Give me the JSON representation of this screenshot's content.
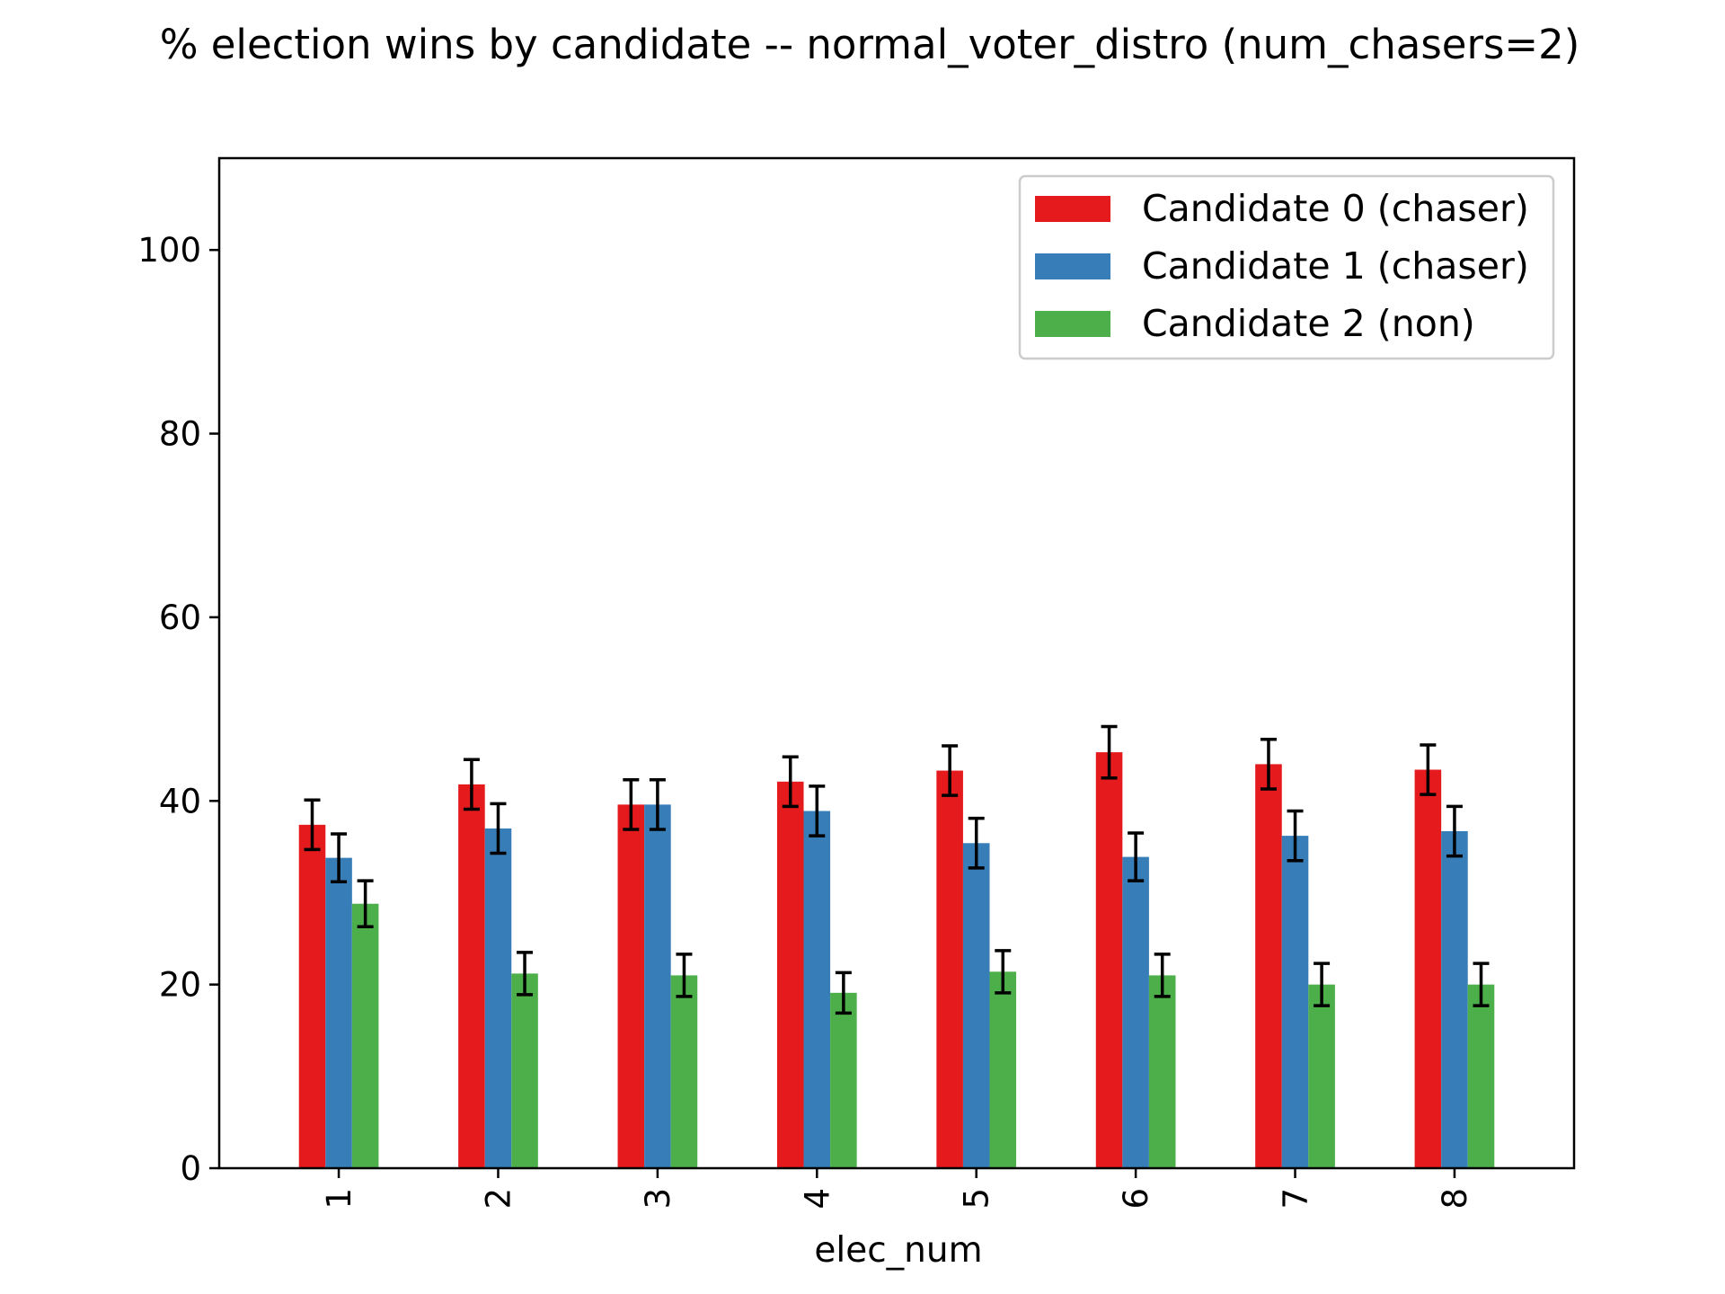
{
  "chart_data": {
    "type": "bar",
    "title": "% election wins by candidate -- normal_voter_distro (num_chasers=2)",
    "xlabel": "elec_num",
    "ylabel": "",
    "categories": [
      "1",
      "2",
      "3",
      "4",
      "5",
      "6",
      "7",
      "8"
    ],
    "ylim": [
      0,
      110
    ],
    "yticks": [
      0,
      20,
      40,
      60,
      80,
      100
    ],
    "ytick_labels": [
      "0",
      "20",
      "40",
      "60",
      "80",
      "100"
    ],
    "xtick_rotation": "vertical",
    "grid": false,
    "legend_position": "top-right",
    "error_bars": true,
    "series": [
      {
        "name": "Candidate 0 (chaser)",
        "color": "#e41a1c",
        "values": [
          37.4,
          41.8,
          39.6,
          42.1,
          43.3,
          45.3,
          44.0,
          43.4
        ],
        "errors": [
          2.7,
          2.7,
          2.7,
          2.7,
          2.7,
          2.8,
          2.7,
          2.7
        ]
      },
      {
        "name": "Candidate 1 (chaser)",
        "color": "#377eb8",
        "values": [
          33.8,
          37.0,
          39.6,
          38.9,
          35.4,
          33.9,
          36.2,
          36.7
        ],
        "errors": [
          2.6,
          2.7,
          2.7,
          2.7,
          2.7,
          2.6,
          2.7,
          2.7
        ]
      },
      {
        "name": "Candidate 2 (non)",
        "color": "#4daf4a",
        "values": [
          28.8,
          21.2,
          21.0,
          19.1,
          21.4,
          21.0,
          20.0,
          20.0
        ],
        "errors": [
          2.5,
          2.3,
          2.3,
          2.2,
          2.3,
          2.3,
          2.3,
          2.3
        ]
      }
    ]
  }
}
